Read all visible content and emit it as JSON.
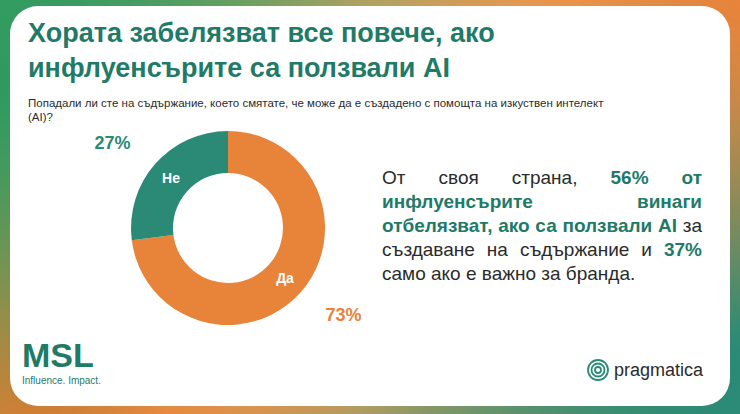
{
  "chart_data": {
    "type": "pie",
    "title": "Хората забелязват все повече, ако инфлуенсърите са ползвали AI",
    "subtitle": "Попадали ли сте на съдържание, което смятате, че може да е създадено с помощта на изкуствен интелект (AI)?",
    "categories": [
      "Да",
      "Не"
    ],
    "values": [
      73,
      27
    ],
    "value_labels": [
      "73%",
      "27%"
    ],
    "colors": [
      "#e8833a",
      "#2a8a76"
    ],
    "data_labels": true,
    "annotation": [
      "От своя страна, ",
      "56% от инфлуенсърите винаги отбелязват, ако са ползвали AI",
      " за създаване на съдържание и ",
      "37%",
      " само ако е важно за бранда."
    ]
  },
  "logos": {
    "left": "MSL",
    "left_tagline": "Influence. Impact.",
    "right": "pragmatica"
  }
}
